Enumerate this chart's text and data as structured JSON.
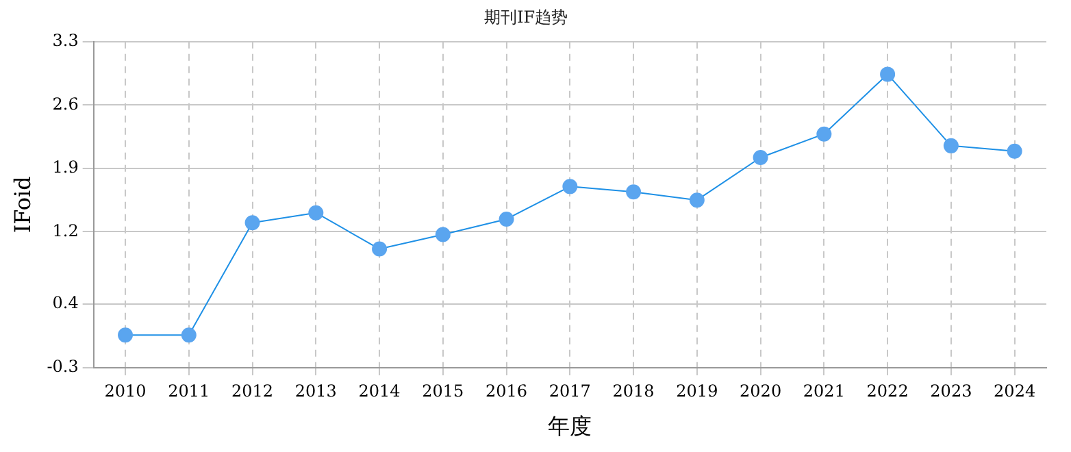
{
  "chart_data": {
    "type": "line",
    "title": "期刊IF趋势",
    "xlabel": "年度",
    "ylabel": "IFoid",
    "categories": [
      "2010",
      "2011",
      "2012",
      "2013",
      "2014",
      "2015",
      "2016",
      "2017",
      "2018",
      "2019",
      "2020",
      "2021",
      "2022",
      "2023",
      "2024"
    ],
    "series": [
      {
        "color": "#1e90e6",
        "values": [
          0.06,
          0.06,
          1.3,
          1.41,
          1.01,
          1.17,
          1.34,
          1.7,
          1.64,
          1.55,
          2.02,
          2.28,
          2.94,
          2.15,
          2.09
        ]
      }
    ],
    "ylim": [
      -0.3,
      3.3
    ],
    "yticks": [
      -0.3,
      0.4,
      1.2,
      1.9,
      2.6,
      3.3
    ],
    "grid": true,
    "legend": false,
    "marker": "circle",
    "line_style": "solid"
  }
}
